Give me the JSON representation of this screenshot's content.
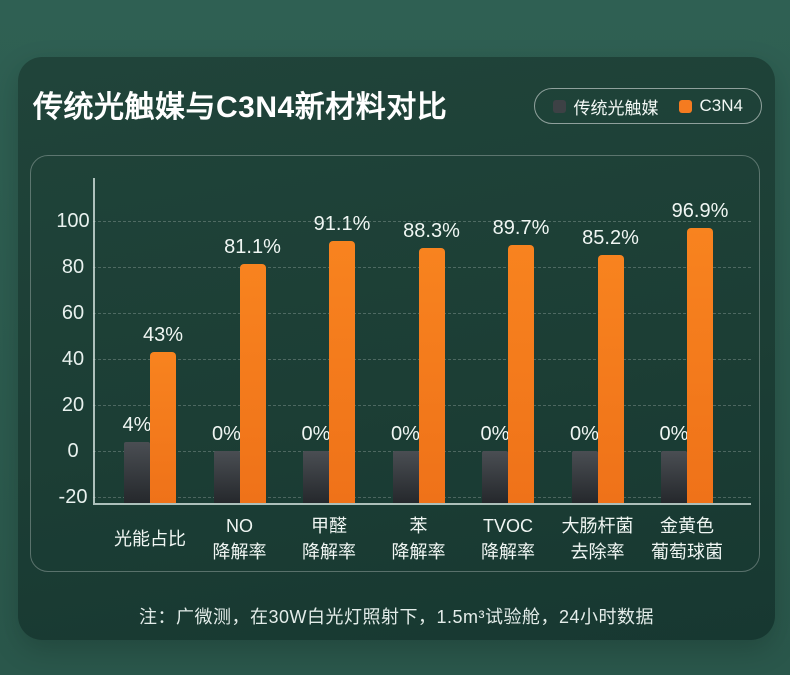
{
  "header": {
    "title": "传统光触媒与C3N4新材料对比"
  },
  "legend": {
    "items": [
      {
        "label": "传统光触媒",
        "color": "#3d4145"
      },
      {
        "label": "C3N4",
        "color": "#f57b20"
      }
    ]
  },
  "note": "注：广微测，在30W白光灯照射下，1.5m³试验舱，24小时数据",
  "colors": {
    "outer_background": "#2d5c50",
    "panel_background": "#1d4036",
    "bar_gray_top": "#4a4e53",
    "bar_gray_bottom": "#25282c",
    "bar_orange": "#f57b20",
    "axis": "#cfdeda",
    "gridline": "rgba(255,255,255,0.22)",
    "text": "#eef5f2"
  },
  "chart_data": {
    "type": "bar",
    "title": "传统光触媒与C3N4新材料对比",
    "categories": [
      "光能占比",
      "NO降解率",
      "甲醛降解率",
      "苯降解率",
      "TVOC降解率",
      "大肠杆菌去除率",
      "金黄色葡萄球菌"
    ],
    "category_lines": [
      [
        "光能占比"
      ],
      [
        "NO",
        "降解率"
      ],
      [
        "甲醛",
        "降解率"
      ],
      [
        "苯",
        "降解率"
      ],
      [
        "TVOC",
        "降解率"
      ],
      [
        "大肠杆菌",
        "去除率"
      ],
      [
        "金黄色",
        "葡萄球菌"
      ]
    ],
    "series": [
      {
        "name": "传统光触媒",
        "color_key": "gray",
        "values": [
          4,
          0,
          0,
          0,
          0,
          0,
          0
        ],
        "data_labels": [
          "4%",
          "0%",
          "0%",
          "0%",
          "0%",
          "0%",
          "0%"
        ]
      },
      {
        "name": "C3N4",
        "color_key": "orange",
        "values": [
          43,
          81.1,
          91.1,
          88.3,
          89.7,
          85.2,
          96.9
        ],
        "data_labels": [
          "43%",
          "81.1%",
          "91.1%",
          "88.3%",
          "89.7%",
          "85.2%",
          "96.9%"
        ]
      }
    ],
    "y_axis": {
      "ticks": [
        100,
        80,
        60,
        40,
        20,
        0,
        -20
      ],
      "range_top": 112,
      "range_bottom": -22.6
    },
    "grid": "dashed horizontal",
    "legend_position": "top-right",
    "xlabel": "",
    "ylabel": ""
  }
}
